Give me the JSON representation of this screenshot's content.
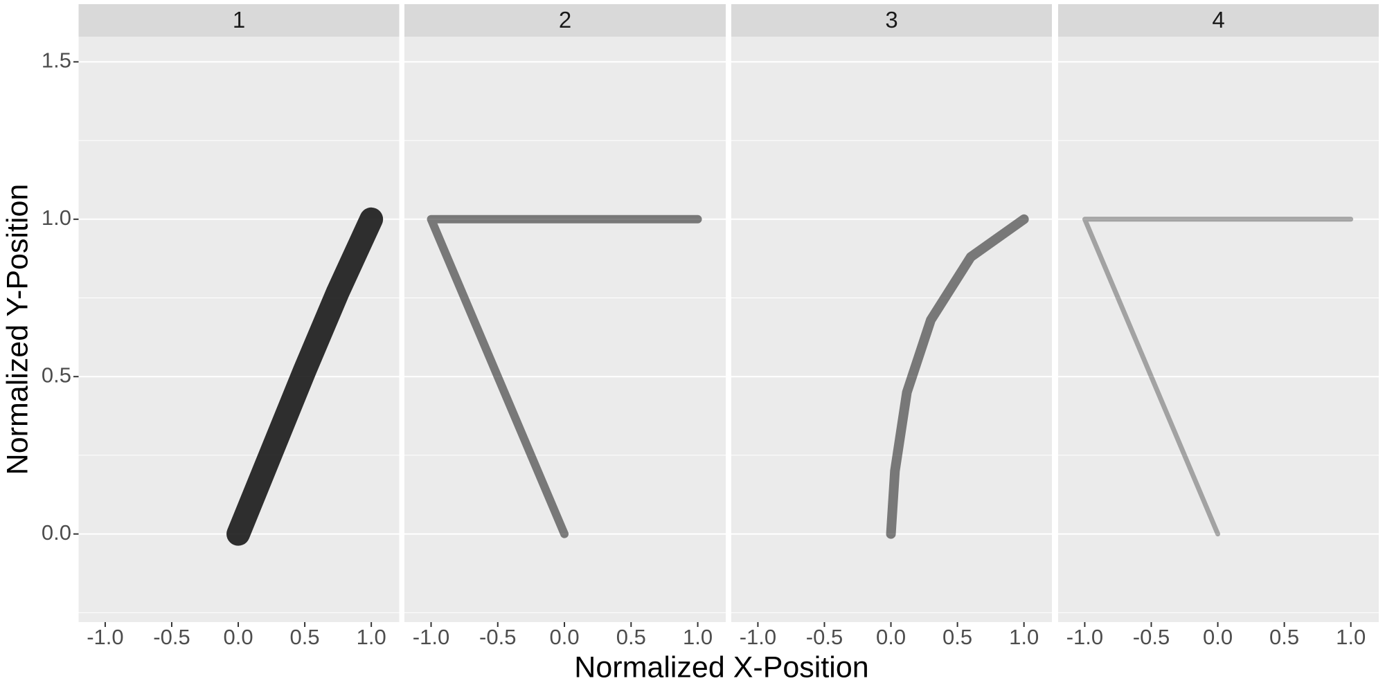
{
  "x_label": "Normalized X-Position",
  "y_label": "Normalized Y-Position",
  "chart_data": [
    {
      "type": "line",
      "title": "1",
      "color": "#1a1a1a",
      "x": [
        0,
        0.25,
        0.5,
        0.75,
        1
      ],
      "values": [
        0,
        0.26,
        0.52,
        0.77,
        1
      ],
      "xlim": [
        -1.2,
        1.21
      ],
      "ylim": [
        -0.28,
        1.58
      ],
      "grid": true,
      "xticks": [
        {
          "value": -1,
          "label": "-1.0"
        },
        {
          "value": -0.5,
          "label": "-0.5"
        },
        {
          "value": 0,
          "label": "0.0"
        },
        {
          "value": 0.5,
          "label": "0.5"
        },
        {
          "value": 1,
          "label": "1.0"
        }
      ],
      "yticks": [
        {
          "value": 0,
          "label": "0.0"
        },
        {
          "value": 0.5,
          "label": "0.5"
        },
        {
          "value": 1,
          "label": "1.0"
        },
        {
          "value": 1.5,
          "label": "1.5"
        }
      ]
    },
    {
      "type": "line",
      "title": "2",
      "color": "#1a1a1a",
      "x": [
        0,
        -0.5,
        -1,
        0,
        1
      ],
      "values": [
        0,
        0.5,
        1,
        1,
        1
      ],
      "xlim": [
        -1.2,
        1.21
      ],
      "xticks": [
        {
          "value": -1,
          "label": "-1.0"
        },
        {
          "value": -0.5,
          "label": "-0.5"
        },
        {
          "value": 0,
          "label": "0.0"
        },
        {
          "value": 0.5,
          "label": "0.5"
        },
        {
          "value": 1,
          "label": "1.0"
        }
      ]
    },
    {
      "type": "line",
      "title": "3",
      "color": "#1a1a1a",
      "x": [
        0,
        0.03,
        0.12,
        0.3,
        0.6,
        1
      ],
      "values": [
        0,
        0.2,
        0.45,
        0.68,
        0.88,
        1
      ],
      "xlim": [
        -1.2,
        1.21
      ],
      "xticks": [
        {
          "value": -1,
          "label": "-1.0"
        },
        {
          "value": -0.5,
          "label": "-0.5"
        },
        {
          "value": 0,
          "label": "0.0"
        },
        {
          "value": 0.5,
          "label": "0.5"
        },
        {
          "value": 1,
          "label": "1.0"
        }
      ]
    },
    {
      "type": "line",
      "title": "4",
      "color": "#1a1a1a",
      "x": [
        0,
        -0.5,
        -1,
        0,
        1
      ],
      "values": [
        0,
        0.5,
        1,
        1,
        1
      ],
      "xlim": [
        -1.2,
        1.21
      ],
      "xticks": [
        {
          "value": -1,
          "label": "-1.0"
        },
        {
          "value": -0.5,
          "label": "-0.5"
        },
        {
          "value": 0,
          "label": "0.0"
        },
        {
          "value": 0.5,
          "label": "0.5"
        },
        {
          "value": 1,
          "label": "1.0"
        }
      ]
    }
  ]
}
